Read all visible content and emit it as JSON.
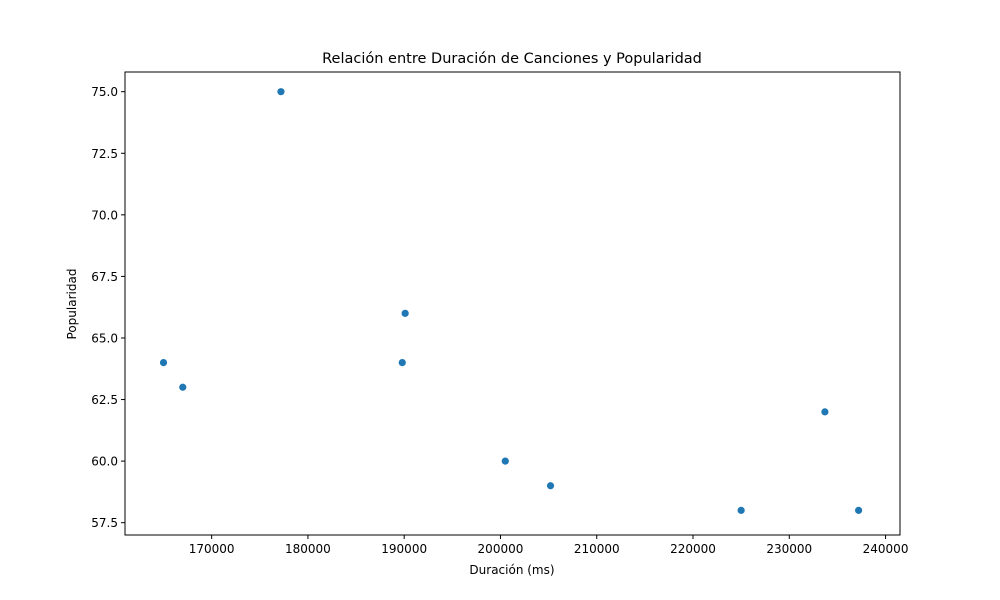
{
  "chart_data": {
    "type": "scatter",
    "title": "Relación entre Duración de Canciones y Popularidad",
    "xlabel": "Duración (ms)",
    "ylabel": "Popularidad",
    "xlim": [
      161000,
      241500
    ],
    "ylim": [
      57.0,
      75.8
    ],
    "xticks": [
      170000,
      180000,
      190000,
      200000,
      210000,
      220000,
      230000,
      240000
    ],
    "xtick_labels": [
      "170000",
      "180000",
      "190000",
      "200000",
      "210000",
      "220000",
      "230000",
      "240000"
    ],
    "yticks": [
      57.5,
      60.0,
      62.5,
      65.0,
      67.5,
      70.0,
      72.5,
      75.0
    ],
    "ytick_labels": [
      "57.5",
      "60.0",
      "62.5",
      "65.0",
      "67.5",
      "70.0",
      "72.5",
      "75.0"
    ],
    "grid": false,
    "marker_color": "#1f77b4",
    "points": [
      {
        "x": 177200,
        "y": 75
      },
      {
        "x": 165000,
        "y": 64
      },
      {
        "x": 167000,
        "y": 63
      },
      {
        "x": 190100,
        "y": 66
      },
      {
        "x": 189800,
        "y": 64
      },
      {
        "x": 200500,
        "y": 60
      },
      {
        "x": 205200,
        "y": 59
      },
      {
        "x": 225000,
        "y": 58
      },
      {
        "x": 233700,
        "y": 62
      },
      {
        "x": 237200,
        "y": 58
      }
    ]
  }
}
